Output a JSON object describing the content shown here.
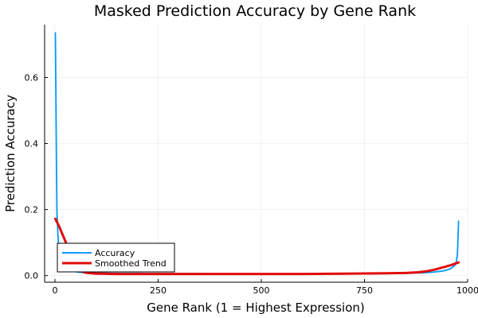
{
  "chart_data": {
    "type": "line",
    "title": "Masked Prediction Accuracy by Gene Rank",
    "xlabel": "Gene Rank (1 = Highest Expression)",
    "ylabel": "Prediction Accuracy",
    "xlim": [
      -25,
      1000
    ],
    "ylim": [
      -0.02,
      0.76
    ],
    "x_ticks": [
      0,
      250,
      500,
      750,
      1000
    ],
    "x_tick_labels": [
      "0",
      "250",
      "500",
      "750",
      "1000"
    ],
    "y_ticks": [
      0.0,
      0.2,
      0.4,
      0.6
    ],
    "y_tick_labels": [
      "0.0",
      "0.2",
      "0.4",
      "0.6"
    ],
    "grid": true,
    "legend_position": "bottom-left",
    "series": [
      {
        "name": "Accuracy",
        "color": "#009af9",
        "x": [
          1,
          2,
          3,
          4,
          5,
          7,
          9,
          12,
          15,
          20,
          25,
          30,
          40,
          50,
          60,
          80,
          100,
          150,
          200,
          250,
          300,
          350,
          400,
          450,
          500,
          550,
          600,
          650,
          700,
          750,
          800,
          850,
          880,
          900,
          920,
          940,
          950,
          960,
          965,
          970,
          973,
          975,
          976,
          977,
          978
        ],
        "y": [
          0.735,
          0.6,
          0.45,
          0.3,
          0.19,
          0.13,
          0.09,
          0.06,
          0.045,
          0.03,
          0.022,
          0.018,
          0.014,
          0.012,
          0.01,
          0.009,
          0.008,
          0.007,
          0.007,
          0.006,
          0.006,
          0.006,
          0.005,
          0.005,
          0.005,
          0.005,
          0.005,
          0.005,
          0.006,
          0.006,
          0.006,
          0.007,
          0.008,
          0.009,
          0.011,
          0.014,
          0.017,
          0.022,
          0.027,
          0.033,
          0.045,
          0.06,
          0.09,
          0.13,
          0.165
        ]
      },
      {
        "name": "Smoothed Trend",
        "color": "#e20a0a",
        "x": [
          1,
          10,
          20,
          30,
          40,
          50,
          60,
          70,
          80,
          100,
          150,
          200,
          300,
          400,
          500,
          600,
          700,
          800,
          850,
          880,
          900,
          920,
          940,
          960,
          978
        ],
        "y": [
          0.172,
          0.15,
          0.12,
          0.09,
          0.06,
          0.035,
          0.018,
          0.01,
          0.008,
          0.006,
          0.005,
          0.005,
          0.005,
          0.005,
          0.005,
          0.005,
          0.006,
          0.007,
          0.008,
          0.01,
          0.013,
          0.018,
          0.025,
          0.032,
          0.04
        ]
      }
    ]
  }
}
